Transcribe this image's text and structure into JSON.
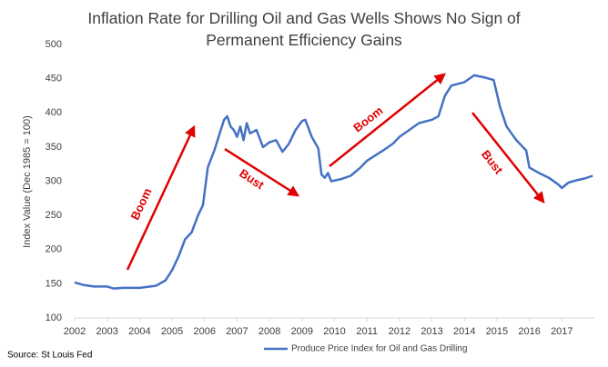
{
  "chart_data": {
    "type": "line",
    "title": "Inflation Rate for Drilling Oil and Gas Wells Shows No Sign of Permanent Efficiency Gains",
    "y_label": "Index Value (Dec 1985 = 100)",
    "source": "Source: St Louis Fed",
    "annotations": [
      "Boom",
      "Bust",
      "Boom",
      "Bust"
    ],
    "annotation_color": "#e00000",
    "x": [
      2002.0,
      2002.3,
      2002.6,
      2003.0,
      2003.2,
      2003.5,
      2004.0,
      2004.5,
      2004.8,
      2005.0,
      2005.2,
      2005.4,
      2005.6,
      2005.8,
      2005.95,
      2006.1,
      2006.3,
      2006.5,
      2006.6,
      2006.7,
      2006.8,
      2006.9,
      2007.0,
      2007.1,
      2007.2,
      2007.3,
      2007.4,
      2007.6,
      2007.8,
      2008.0,
      2008.2,
      2008.4,
      2008.6,
      2008.8,
      2009.0,
      2009.1,
      2009.3,
      2009.5,
      2009.6,
      2009.7,
      2009.8,
      2009.9,
      2010.2,
      2010.5,
      2010.8,
      2011.0,
      2011.5,
      2011.8,
      2012.0,
      2012.3,
      2012.6,
      2013.0,
      2013.2,
      2013.4,
      2013.6,
      2014.0,
      2014.3,
      2014.6,
      2014.9,
      2015.1,
      2015.3,
      2015.6,
      2015.9,
      2016.0,
      2016.3,
      2016.6,
      2016.9,
      2017.0,
      2017.2,
      2017.5,
      2017.7,
      2017.95
    ],
    "series": [
      {
        "name": "Produce Price Index for Oil and Gas Drilling",
        "color": "#4472c4",
        "values": [
          152,
          148,
          146,
          146,
          143,
          144,
          144,
          147,
          155,
          170,
          190,
          215,
          225,
          250,
          265,
          320,
          345,
          375,
          390,
          395,
          380,
          375,
          365,
          380,
          360,
          385,
          370,
          375,
          350,
          357,
          360,
          343,
          355,
          375,
          388,
          390,
          365,
          348,
          310,
          305,
          312,
          300,
          303,
          308,
          320,
          330,
          345,
          355,
          365,
          375,
          385,
          390,
          395,
          425,
          440,
          445,
          455,
          452,
          448,
          408,
          380,
          360,
          345,
          320,
          312,
          305,
          295,
          290,
          298,
          302,
          304,
          308
        ]
      }
    ],
    "xlim": [
      2002,
      2018
    ],
    "xticks": [
      2002,
      2003,
      2004,
      2005,
      2006,
      2007,
      2008,
      2009,
      2010,
      2011,
      2012,
      2013,
      2014,
      2015,
      2016,
      2017
    ],
    "ylim": [
      100,
      500
    ],
    "yticks": [
      100,
      150,
      200,
      250,
      300,
      350,
      400,
      450,
      500
    ],
    "grid": false
  }
}
